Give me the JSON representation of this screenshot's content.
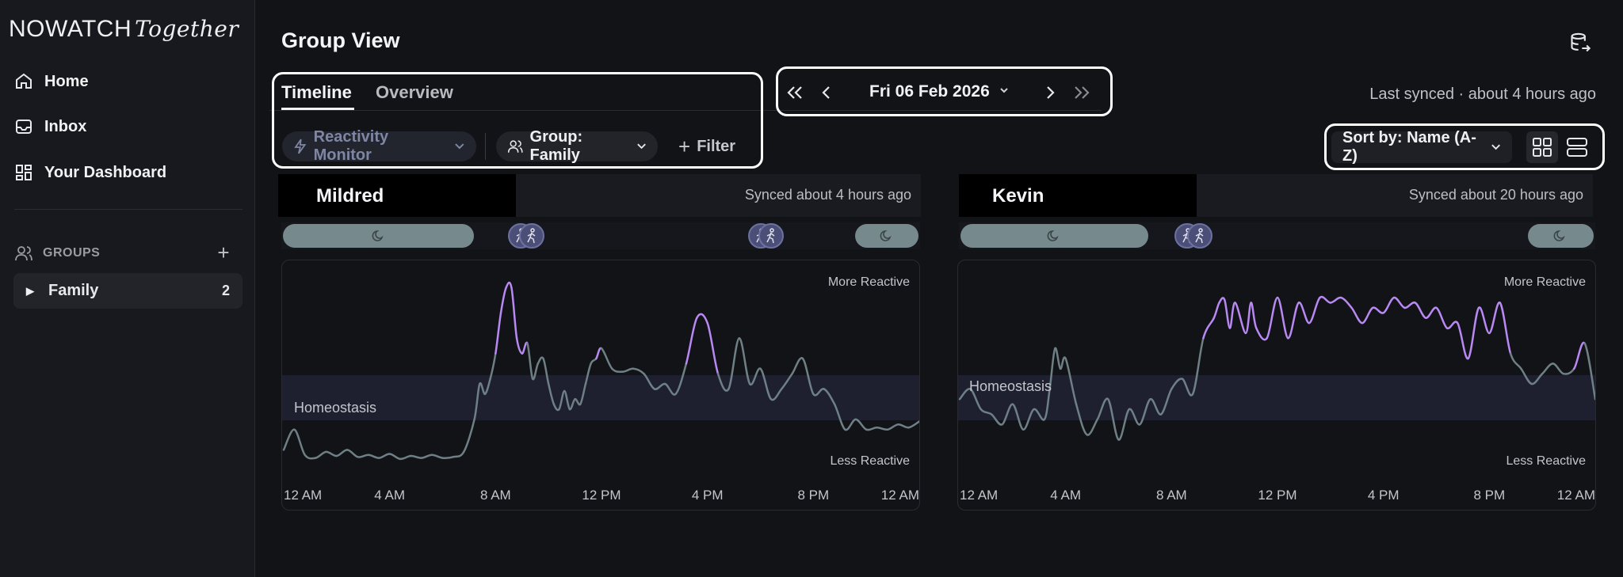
{
  "app": {
    "brand": "NOWATCH",
    "brand_suffix": "Together"
  },
  "sidebar": {
    "nav": [
      {
        "label": "Home",
        "icon": "home-icon"
      },
      {
        "label": "Inbox",
        "icon": "inbox-icon"
      },
      {
        "label": "Your Dashboard",
        "icon": "dashboard-icon"
      }
    ],
    "groups_header": "GROUPS",
    "groups": [
      {
        "label": "Family",
        "count": "2"
      }
    ]
  },
  "header": {
    "title": "Group View",
    "export_icon": "database-export-icon"
  },
  "tabs": [
    {
      "label": "Timeline",
      "active": true
    },
    {
      "label": "Overview",
      "active": false
    }
  ],
  "filters": {
    "monitor_label": "Reactivity Monitor",
    "group_label": "Group: Family",
    "filter_label": "Filter"
  },
  "date_nav": {
    "date": "Fri 06 Feb 2026"
  },
  "status": {
    "last_synced": "Last synced · about 4 hours ago"
  },
  "sort": {
    "label": "Sort by: Name (A-Z)"
  },
  "colors": {
    "accent_purple": "#b889f2",
    "line_gray": "#6e7f86",
    "homeostasis_band": "#1e2030",
    "sleep_pill": "#76898c",
    "activity_dot": "#4b4f78"
  },
  "cards": [
    {
      "name": "Mildred",
      "synced": "Synced about 4 hours ago",
      "band_label": "Homeostasis",
      "top_label": "More Reactive",
      "bottom_label": "Less Reactive",
      "x_labels": [
        "12 AM",
        "4 AM",
        "8 AM",
        "12 PM",
        "4 PM",
        "8 PM",
        "12 AM"
      ],
      "series_hours": [
        0,
        0.4,
        0.8,
        1.2,
        1.6,
        2,
        2.4,
        2.8,
        3.2,
        3.6,
        4,
        4.4,
        4.8,
        5.2,
        5.6,
        6,
        6.4,
        6.8,
        7.2,
        7.4,
        7.6,
        7.8,
        8,
        8.2,
        8.4,
        8.6,
        8.8,
        9,
        9.2,
        9.4,
        9.6,
        9.8,
        10,
        10.2,
        10.4,
        10.6,
        10.8,
        11,
        11.2,
        11.4,
        11.6,
        11.8,
        12,
        12.4,
        12.8,
        13.2,
        13.6,
        14,
        14.4,
        14.8,
        15.2,
        15.6,
        16,
        16.4,
        16.8,
        17.2,
        17.6,
        18,
        18.4,
        18.8,
        19.2,
        19.6,
        20,
        20.4,
        20.8,
        21.2,
        21.6,
        22,
        22.4,
        22.8,
        23.2,
        23.6,
        24
      ],
      "series_values": [
        0.1,
        0.3,
        0.05,
        0.02,
        0.08,
        0.04,
        0.1,
        0.03,
        0.05,
        0.02,
        0.06,
        0.01,
        0.04,
        0.02,
        0.05,
        0.02,
        0.03,
        0.08,
        0.4,
        0.75,
        0.65,
        0.8,
        1.05,
        1.45,
        1.7,
        1.7,
        1.2,
        1.05,
        1.15,
        0.8,
        0.95,
        1.0,
        0.75,
        0.55,
        0.5,
        0.68,
        0.5,
        0.6,
        0.55,
        0.75,
        0.95,
        1.0,
        1.1,
        0.9,
        0.87,
        0.9,
        0.85,
        0.7,
        0.75,
        0.65,
        0.95,
        1.4,
        1.35,
        0.85,
        0.7,
        1.2,
        0.75,
        0.9,
        0.6,
        0.7,
        0.85,
        1.0,
        0.65,
        0.7,
        0.55,
        0.3,
        0.4,
        0.3,
        0.32,
        0.3,
        0.35,
        0.32,
        0.38
      ],
      "sleep": [
        [
          0,
          7.3
        ],
        [
          21.5,
          24
        ]
      ],
      "activity": [
        9.0,
        9.4,
        18.0,
        18.4
      ]
    },
    {
      "name": "Kevin",
      "synced": "Synced about 20 hours ago",
      "band_label": "Homeostasis",
      "top_label": "More Reactive",
      "bottom_label": "Less Reactive",
      "x_labels": [
        "12 AM",
        "4 AM",
        "8 AM",
        "12 PM",
        "4 PM",
        "8 PM",
        "12 AM"
      ],
      "series_hours": [
        0,
        0.4,
        0.8,
        1.2,
        1.6,
        2,
        2.4,
        2.8,
        3.2,
        3.4,
        3.6,
        3.8,
        4,
        4.4,
        4.8,
        5.2,
        5.6,
        6,
        6.4,
        6.8,
        7.2,
        7.6,
        8,
        8.4,
        8.8,
        9.2,
        9.6,
        9.8,
        10,
        10.2,
        10.4,
        10.8,
        11,
        11.2,
        11.6,
        12,
        12.4,
        12.8,
        13.2,
        13.6,
        14,
        14.4,
        14.8,
        15.2,
        15.6,
        16,
        16.4,
        16.8,
        17.2,
        17.6,
        18,
        18.4,
        18.8,
        19.2,
        19.6,
        20,
        20.4,
        20.8,
        21.2,
        21.6,
        22,
        22.4,
        22.8,
        23.2,
        23.6,
        24
      ],
      "series_values": [
        0.6,
        0.7,
        0.5,
        0.45,
        0.35,
        0.55,
        0.3,
        0.5,
        0.4,
        0.7,
        1.1,
        0.9,
        1.0,
        0.55,
        0.25,
        0.4,
        0.6,
        0.2,
        0.5,
        0.35,
        0.6,
        0.45,
        0.7,
        0.8,
        0.65,
        1.2,
        1.4,
        1.55,
        1.58,
        1.3,
        1.55,
        1.25,
        1.55,
        1.3,
        1.2,
        1.6,
        1.2,
        1.55,
        1.35,
        1.6,
        1.55,
        1.6,
        1.5,
        1.35,
        1.5,
        1.45,
        1.6,
        1.5,
        1.55,
        1.4,
        1.5,
        1.3,
        1.35,
        1.0,
        1.5,
        1.25,
        1.55,
        1.05,
        0.9,
        0.75,
        0.85,
        0.95,
        0.85,
        0.9,
        1.15,
        0.6
      ],
      "sleep": [
        [
          0,
          7.2
        ],
        [
          21.4,
          24
        ]
      ],
      "activity": [
        8.6,
        9.1
      ]
    }
  ]
}
